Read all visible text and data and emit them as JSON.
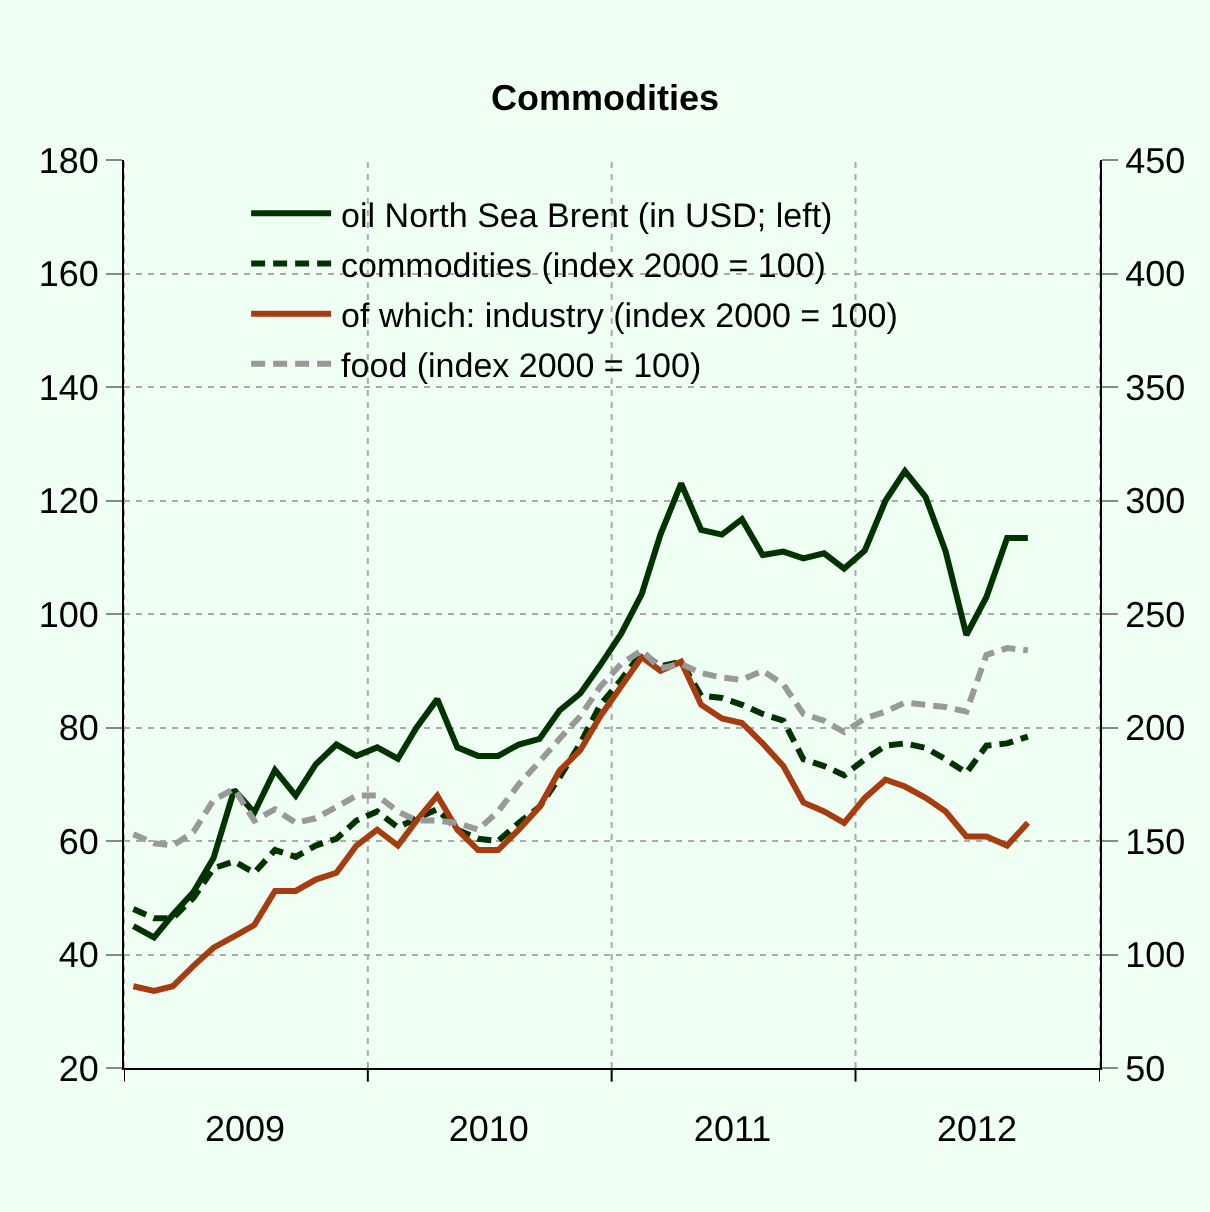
{
  "chart_data": {
    "type": "line",
    "title": "Commodities",
    "x": [
      "2009-01-15",
      "2009-02-15",
      "2009-03-15",
      "2009-04-15",
      "2009-05-15",
      "2009-06-15",
      "2009-07-15",
      "2009-08-15",
      "2009-09-15",
      "2009-10-15",
      "2009-11-15",
      "2009-12-15",
      "2010-01-15",
      "2010-02-15",
      "2010-03-15",
      "2010-04-15",
      "2010-05-15",
      "2010-06-15",
      "2010-07-15",
      "2010-08-15",
      "2010-09-15",
      "2010-10-15",
      "2010-11-15",
      "2010-12-15",
      "2011-01-15",
      "2011-02-15",
      "2011-03-15",
      "2011-04-15",
      "2011-05-15",
      "2011-06-15",
      "2011-07-15",
      "2011-08-15",
      "2011-09-15",
      "2011-10-15",
      "2011-11-15",
      "2011-12-15",
      "2012-01-15",
      "2012-02-15",
      "2012-03-15",
      "2012-04-15",
      "2012-05-15",
      "2012-06-15",
      "2012-07-15",
      "2012-08-15",
      "2012-09-15"
    ],
    "series": [
      {
        "name": "oil North Sea Brent (in USD; left)",
        "color": "#003300",
        "line_style": "solid",
        "values": [
          45,
          43,
          47,
          51,
          57,
          69,
          65,
          72.5,
          68,
          73.5,
          77,
          75,
          76.5,
          74.5,
          80,
          85,
          76.5,
          75,
          75,
          77,
          78,
          83,
          86,
          91,
          96.5,
          103.5,
          114,
          123,
          114.8,
          114,
          116.7,
          110.4,
          111,
          109.8,
          110.7,
          108,
          111.2,
          120,
          125.2,
          120.6,
          111,
          96.3,
          103,
          113.4,
          113.4
        ]
      },
      {
        "name": "commodities (index 2000 = 100)",
        "color": "#003300",
        "line_style": "dashed",
        "axis": "y2",
        "values": [
          120,
          116,
          116,
          125,
          138,
          141,
          136,
          146,
          143,
          148,
          151,
          159,
          163,
          156,
          160,
          164,
          155,
          151,
          150,
          158,
          165,
          178,
          193,
          210,
          221,
          233,
          227,
          229,
          214,
          213,
          210,
          206,
          203,
          186,
          183,
          179,
          186,
          192,
          193,
          191,
          186,
          180,
          192,
          193,
          196
        ]
      },
      {
        "name": "of which: industry (index 2000 = 100)",
        "color": "#a63c0f",
        "line_style": "solid",
        "axis": "y2",
        "values": [
          86,
          84,
          86,
          95,
          103,
          108,
          113,
          128,
          128,
          133,
          136,
          148,
          155,
          148,
          159,
          170,
          155,
          146,
          146,
          155,
          165,
          181,
          190,
          205,
          218,
          231,
          225,
          229,
          210,
          204,
          202,
          193,
          183,
          167,
          163,
          158,
          169,
          177,
          174,
          169,
          163,
          152,
          152,
          148,
          158
        ]
      },
      {
        "name": "food (index 2000 = 100)",
        "color": "#999999",
        "line_style": "dashed",
        "axis": "y2",
        "values": [
          153,
          149,
          148,
          154,
          168,
          173,
          159,
          164,
          158,
          160,
          165,
          170,
          170,
          163,
          159,
          159,
          158,
          155,
          163,
          175,
          185,
          195,
          205,
          218,
          228,
          234,
          226,
          228,
          224,
          222,
          221,
          225,
          219,
          206,
          203,
          198,
          204,
          207,
          211,
          210,
          209,
          207,
          232,
          235,
          234
        ]
      }
    ],
    "xlim": [
      "2009-01-01",
      "2013-01-01"
    ],
    "xticks": [
      {
        "value": "2009-01-01",
        "label": null
      },
      {
        "value": "2009-07-01",
        "label": "2009"
      },
      {
        "value": "2010-01-01",
        "label": null
      },
      {
        "value": "2010-07-01",
        "label": "2010"
      },
      {
        "value": "2011-01-01",
        "label": null
      },
      {
        "value": "2011-07-01",
        "label": "2011"
      },
      {
        "value": "2012-01-01",
        "label": null
      },
      {
        "value": "2012-07-01",
        "label": "2012"
      },
      {
        "value": "2013-01-01",
        "label": null
      }
    ],
    "ylim": [
      20,
      180
    ],
    "yticks": [
      20,
      40,
      60,
      80,
      100,
      120,
      140,
      160,
      180
    ],
    "y2lim": [
      50,
      450
    ],
    "y2ticks": [
      50,
      100,
      150,
      200,
      250,
      300,
      350,
      400,
      450
    ],
    "grid": true,
    "legend": "top left"
  }
}
